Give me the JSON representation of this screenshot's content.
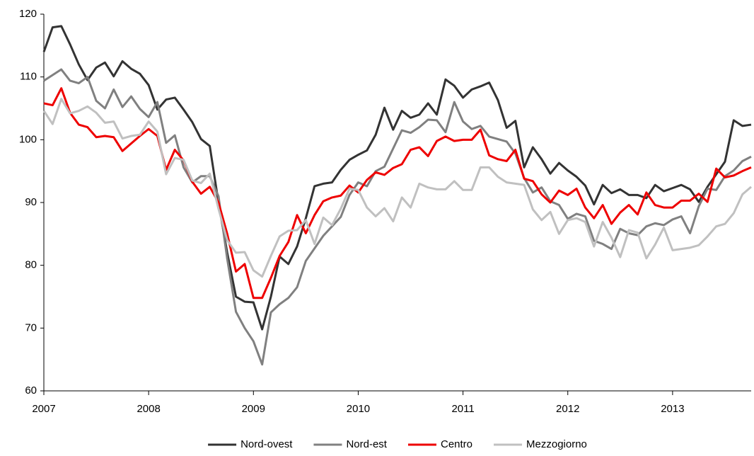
{
  "chart_data": {
    "type": "line",
    "categories": [
      "2007",
      null,
      null,
      null,
      null,
      null,
      null,
      null,
      null,
      null,
      null,
      null,
      "2008",
      null,
      null,
      null,
      null,
      null,
      null,
      null,
      null,
      null,
      null,
      null,
      "2009",
      null,
      null,
      null,
      null,
      null,
      null,
      null,
      null,
      null,
      null,
      null,
      "2010",
      null,
      null,
      null,
      null,
      null,
      null,
      null,
      null,
      null,
      null,
      null,
      "2011",
      null,
      null,
      null,
      null,
      null,
      null,
      null,
      null,
      null,
      null,
      null,
      "2012",
      null,
      null,
      null,
      null,
      null,
      null,
      null,
      null,
      null,
      null,
      null,
      "2013",
      null,
      null,
      null,
      null,
      null,
      null,
      null,
      null,
      null
    ],
    "series": [
      {
        "name": "Nord-ovest",
        "color": "#333333",
        "values": [
          114,
          117.9,
          118.1,
          115.2,
          112,
          109.5,
          111.5,
          112.3,
          110.1,
          112.5,
          111.3,
          110.5,
          108.7,
          104.8,
          106.4,
          106.7,
          104.8,
          102.8,
          100.1,
          99,
          90,
          82,
          75,
          74.2,
          74.1,
          69.8,
          75,
          81.4,
          80.2,
          83,
          87.5,
          92.6,
          93,
          93.2,
          95.2,
          96.8,
          97.6,
          98.3,
          100.8,
          105.1,
          101.6,
          104.6,
          103.5,
          104,
          105.8,
          104,
          109.6,
          108.6,
          106.7,
          108,
          108.5,
          109.1,
          106.3,
          101.9,
          103,
          95.6,
          98.8,
          96.9,
          94.6,
          96.3,
          95.1,
          94.1,
          92.7,
          89.7,
          92.8,
          91.5,
          92.1,
          91.2,
          91.2,
          90.7,
          92.8,
          91.8,
          92.3,
          92.8,
          92.1,
          90.1,
          92.5,
          94.5,
          96.5,
          103.1,
          102.2,
          102.4
        ]
      },
      {
        "name": "Nord-est",
        "color": "#808080",
        "values": [
          109.4,
          110.3,
          111.2,
          109.4,
          109,
          110,
          106.2,
          105,
          108,
          105.2,
          106.9,
          104.9,
          103.6,
          106,
          99.5,
          100.7,
          95.6,
          93.2,
          94.2,
          94.2,
          91,
          81,
          72.6,
          70,
          67.9,
          64.2,
          72.5,
          73.8,
          74.8,
          76.5,
          80.7,
          82.7,
          84.7,
          86.2,
          87.7,
          91.2,
          93.2,
          92.6,
          95,
          95.7,
          98.6,
          101.5,
          101.1,
          102,
          103.2,
          103.1,
          101.2,
          106,
          102.9,
          101.7,
          102.2,
          100.5,
          100.1,
          99.7,
          97.8,
          93.9,
          91.6,
          92.4,
          90.2,
          89.6,
          87.4,
          88.2,
          87.8,
          83.9,
          83.4,
          82.6,
          85.8,
          85.1,
          84.8,
          86.2,
          86.7,
          86.4,
          87.3,
          87.8,
          85.1,
          89.4,
          92.2,
          92,
          94.2,
          95.1,
          96.6,
          97.3
        ]
      },
      {
        "name": "Centro",
        "color": "#ee0000",
        "values": [
          105.8,
          105.5,
          108.2,
          104.3,
          102.4,
          102,
          100.4,
          100.6,
          100.4,
          98.2,
          99.4,
          100.6,
          101.7,
          100.6,
          95.2,
          98.4,
          96.7,
          93.3,
          91.4,
          92.5,
          90,
          85,
          79,
          80.2,
          74.8,
          74.8,
          78,
          81.5,
          83.7,
          88,
          85.1,
          88,
          90.2,
          90.8,
          91.1,
          92.7,
          91.6,
          93.6,
          94.8,
          94.4,
          95.5,
          96.1,
          98.4,
          98.8,
          97.4,
          99.8,
          100.5,
          99.8,
          100,
          100,
          101.6,
          97.5,
          96.9,
          96.6,
          98.4,
          93.8,
          93.4,
          91.3,
          90,
          91.9,
          91.2,
          92.2,
          89.2,
          87.5,
          89.6,
          86.6,
          88.4,
          89.6,
          88.1,
          91.6,
          89.6,
          89.2,
          89.2,
          90.3,
          90.3,
          91.4,
          90.1,
          95.4,
          94,
          94.3,
          95,
          95.6
        ]
      },
      {
        "name": "Mezzogiorno",
        "color": "#c0c0c0",
        "values": [
          104.6,
          102.5,
          106.5,
          104.2,
          104.6,
          105.3,
          104.3,
          102.7,
          102.9,
          100.2,
          100.6,
          100.8,
          102.9,
          101.3,
          94.5,
          97.1,
          96.8,
          93.5,
          93.1,
          94.6,
          89,
          84,
          82,
          82.1,
          79.2,
          78.2,
          81.5,
          84.6,
          85.5,
          85.6,
          87.2,
          83.4,
          87.6,
          86.4,
          89,
          92.2,
          92,
          89.2,
          87.8,
          89.1,
          87,
          90.8,
          89.2,
          93,
          92.4,
          92.1,
          92.1,
          93.4,
          92,
          92,
          95.6,
          95.6,
          94.1,
          93.2,
          93,
          92.8,
          88.9,
          87.2,
          88.5,
          85,
          87.2,
          87.5,
          86.9,
          83,
          86.9,
          84.4,
          81.3,
          85.6,
          85.2,
          81.1,
          83.3,
          86,
          82.4,
          82.6,
          82.8,
          83.2,
          84.6,
          86.2,
          86.6,
          88.3,
          91.3,
          92.5
        ]
      }
    ],
    "ylim": [
      60,
      120
    ],
    "yticks": [
      60,
      70,
      80,
      90,
      100,
      110,
      120
    ],
    "grid": false,
    "legend": "bottom"
  }
}
